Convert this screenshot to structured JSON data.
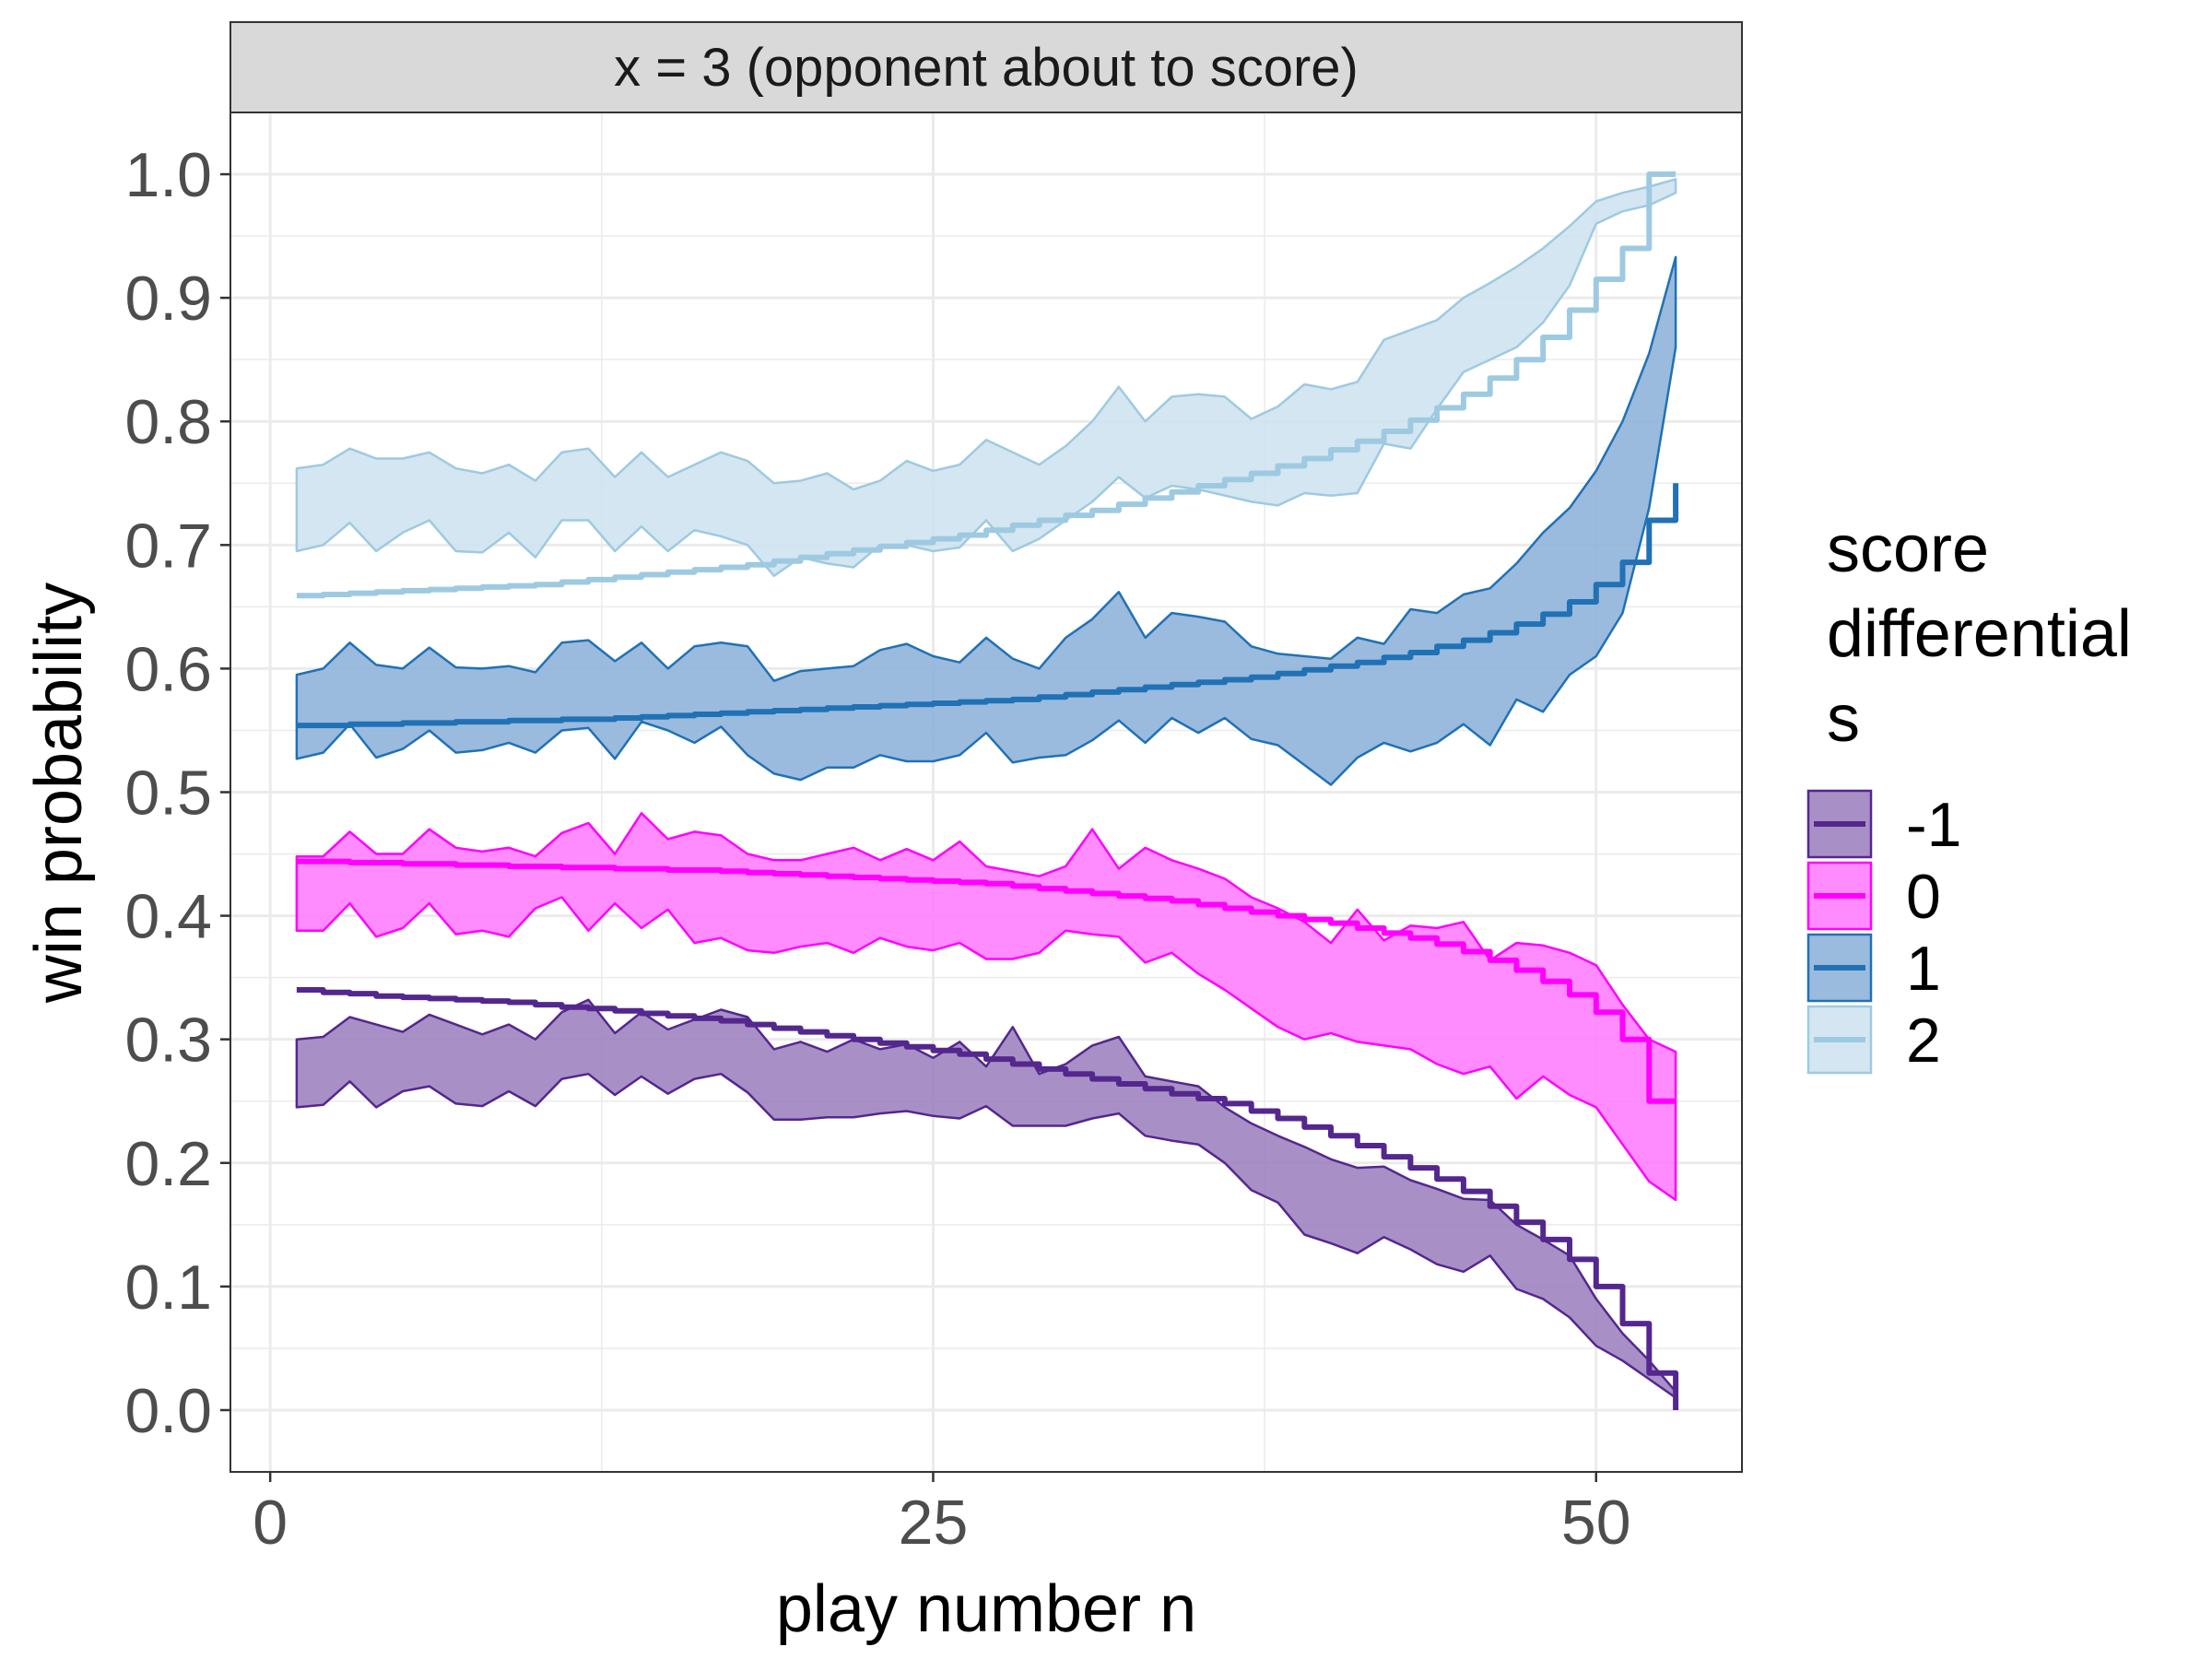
{
  "chart_data": {
    "type": "line",
    "facet_title": "x = 3 (opponent about to score)",
    "xlabel": "play number n",
    "ylabel": "win probability",
    "xlim": [
      -1.5,
      55.5
    ],
    "ylim": [
      -0.05,
      1.05
    ],
    "x_ticks": [
      0,
      25,
      50
    ],
    "x_tick_labels": [
      "0",
      "25",
      "50"
    ],
    "y_ticks": [
      0.0,
      0.1,
      0.2,
      0.3,
      0.4,
      0.5,
      0.6,
      0.7,
      0.8,
      0.9,
      1.0
    ],
    "y_tick_labels": [
      "0.0",
      "0.1",
      "0.2",
      "0.3",
      "0.4",
      "0.5",
      "0.6",
      "0.7",
      "0.8",
      "0.9",
      "1.0"
    ],
    "grid": true,
    "legend": {
      "title": "score differential s",
      "title_lines": [
        "score",
        "differential",
        "s"
      ],
      "position": "right"
    },
    "x": [
      1,
      2,
      3,
      4,
      5,
      6,
      7,
      8,
      9,
      10,
      11,
      12,
      13,
      14,
      15,
      16,
      17,
      18,
      19,
      20,
      21,
      22,
      23,
      24,
      25,
      26,
      27,
      28,
      29,
      30,
      31,
      32,
      33,
      34,
      35,
      36,
      37,
      38,
      39,
      40,
      41,
      42,
      43,
      44,
      45,
      46,
      47,
      48,
      49,
      50,
      51,
      52,
      53
    ],
    "series": [
      {
        "name": "-1",
        "color": "#54278f",
        "fill": "#9e84c0",
        "values": [
          0.34,
          0.338,
          0.337,
          0.335,
          0.334,
          0.333,
          0.332,
          0.331,
          0.33,
          0.328,
          0.326,
          0.325,
          0.323,
          0.321,
          0.319,
          0.317,
          0.315,
          0.312,
          0.309,
          0.306,
          0.303,
          0.3,
          0.297,
          0.294,
          0.291,
          0.288,
          0.284,
          0.28,
          0.276,
          0.272,
          0.268,
          0.264,
          0.26,
          0.256,
          0.252,
          0.248,
          0.242,
          0.236,
          0.229,
          0.222,
          0.214,
          0.205,
          0.196,
          0.187,
          0.177,
          0.165,
          0.152,
          0.138,
          0.122,
          0.1,
          0.07,
          0.03,
          0.0
        ],
        "lower": [
          0.245,
          0.247,
          0.266,
          0.245,
          0.258,
          0.262,
          0.248,
          0.246,
          0.258,
          0.246,
          0.268,
          0.272,
          0.255,
          0.27,
          0.256,
          0.268,
          0.272,
          0.257,
          0.235,
          0.235,
          0.237,
          0.237,
          0.24,
          0.242,
          0.238,
          0.236,
          0.246,
          0.23,
          0.23,
          0.23,
          0.236,
          0.24,
          0.222,
          0.218,
          0.215,
          0.2,
          0.178,
          0.168,
          0.142,
          0.135,
          0.127,
          0.14,
          0.13,
          0.118,
          0.112,
          0.125,
          0.098,
          0.09,
          0.075,
          0.052,
          0.04,
          0.025,
          0.01
        ],
        "upper": [
          0.3,
          0.302,
          0.318,
          0.312,
          0.306,
          0.32,
          0.312,
          0.304,
          0.312,
          0.3,
          0.322,
          0.332,
          0.305,
          0.322,
          0.308,
          0.316,
          0.324,
          0.318,
          0.292,
          0.298,
          0.29,
          0.3,
          0.292,
          0.296,
          0.285,
          0.298,
          0.278,
          0.31,
          0.272,
          0.28,
          0.295,
          0.302,
          0.27,
          0.266,
          0.262,
          0.245,
          0.232,
          0.222,
          0.213,
          0.203,
          0.196,
          0.197,
          0.186,
          0.179,
          0.171,
          0.17,
          0.15,
          0.138,
          0.125,
          0.09,
          0.062,
          0.04,
          0.015
        ]
      },
      {
        "name": "0",
        "color": "#ff00ff",
        "fill": "#ff80ff",
        "values": [
          0.444,
          0.444,
          0.443,
          0.443,
          0.442,
          0.442,
          0.441,
          0.441,
          0.44,
          0.44,
          0.439,
          0.439,
          0.438,
          0.438,
          0.437,
          0.437,
          0.436,
          0.435,
          0.434,
          0.433,
          0.432,
          0.431,
          0.43,
          0.429,
          0.428,
          0.427,
          0.426,
          0.424,
          0.422,
          0.42,
          0.418,
          0.416,
          0.414,
          0.412,
          0.409,
          0.406,
          0.403,
          0.4,
          0.397,
          0.394,
          0.39,
          0.386,
          0.382,
          0.377,
          0.371,
          0.364,
          0.356,
          0.347,
          0.336,
          0.322,
          0.3,
          0.25,
          0.25
        ],
        "lower": [
          0.388,
          0.388,
          0.41,
          0.383,
          0.39,
          0.41,
          0.385,
          0.388,
          0.383,
          0.406,
          0.415,
          0.388,
          0.41,
          0.39,
          0.405,
          0.378,
          0.382,
          0.372,
          0.37,
          0.375,
          0.378,
          0.37,
          0.382,
          0.375,
          0.372,
          0.378,
          0.365,
          0.365,
          0.37,
          0.388,
          0.385,
          0.383,
          0.362,
          0.37,
          0.353,
          0.34,
          0.325,
          0.31,
          0.3,
          0.305,
          0.298,
          0.295,
          0.292,
          0.28,
          0.272,
          0.278,
          0.252,
          0.27,
          0.255,
          0.245,
          0.215,
          0.185,
          0.17
        ],
        "upper": [
          0.448,
          0.448,
          0.468,
          0.45,
          0.45,
          0.47,
          0.455,
          0.452,
          0.455,
          0.448,
          0.467,
          0.475,
          0.45,
          0.483,
          0.462,
          0.468,
          0.465,
          0.45,
          0.445,
          0.445,
          0.45,
          0.455,
          0.445,
          0.454,
          0.445,
          0.46,
          0.44,
          0.436,
          0.432,
          0.44,
          0.47,
          0.438,
          0.455,
          0.445,
          0.438,
          0.43,
          0.415,
          0.406,
          0.395,
          0.378,
          0.405,
          0.38,
          0.392,
          0.39,
          0.395,
          0.364,
          0.378,
          0.376,
          0.37,
          0.36,
          0.328,
          0.3,
          0.29
        ]
      },
      {
        "name": "1",
        "color": "#2171b5",
        "fill": "#8fb4da",
        "values": [
          0.554,
          0.554,
          0.555,
          0.555,
          0.556,
          0.556,
          0.557,
          0.557,
          0.558,
          0.558,
          0.559,
          0.559,
          0.56,
          0.561,
          0.562,
          0.563,
          0.564,
          0.565,
          0.566,
          0.567,
          0.568,
          0.569,
          0.57,
          0.571,
          0.572,
          0.573,
          0.574,
          0.575,
          0.577,
          0.579,
          0.581,
          0.583,
          0.585,
          0.587,
          0.589,
          0.591,
          0.593,
          0.596,
          0.599,
          0.602,
          0.605,
          0.609,
          0.613,
          0.618,
          0.623,
          0.629,
          0.636,
          0.644,
          0.654,
          0.668,
          0.686,
          0.72,
          0.75
        ],
        "lower": [
          0.527,
          0.532,
          0.555,
          0.528,
          0.535,
          0.55,
          0.532,
          0.534,
          0.54,
          0.532,
          0.55,
          0.552,
          0.527,
          0.557,
          0.55,
          0.54,
          0.553,
          0.53,
          0.515,
          0.51,
          0.52,
          0.52,
          0.53,
          0.525,
          0.525,
          0.53,
          0.548,
          0.524,
          0.528,
          0.53,
          0.542,
          0.558,
          0.54,
          0.56,
          0.548,
          0.56,
          0.543,
          0.538,
          0.522,
          0.506,
          0.528,
          0.54,
          0.533,
          0.54,
          0.555,
          0.538,
          0.575,
          0.565,
          0.595,
          0.61,
          0.645,
          0.73,
          0.86
        ],
        "upper": [
          0.595,
          0.6,
          0.621,
          0.603,
          0.6,
          0.617,
          0.601,
          0.6,
          0.602,
          0.597,
          0.621,
          0.623,
          0.606,
          0.621,
          0.6,
          0.618,
          0.621,
          0.618,
          0.59,
          0.598,
          0.6,
          0.602,
          0.615,
          0.62,
          0.61,
          0.605,
          0.625,
          0.608,
          0.6,
          0.625,
          0.64,
          0.662,
          0.625,
          0.645,
          0.642,
          0.638,
          0.618,
          0.612,
          0.61,
          0.608,
          0.625,
          0.62,
          0.648,
          0.645,
          0.66,
          0.665,
          0.685,
          0.71,
          0.73,
          0.76,
          0.8,
          0.855,
          0.933
        ]
      },
      {
        "name": "2",
        "color": "#9ecae1",
        "fill": "#cfe3ef",
        "values": [
          0.659,
          0.66,
          0.661,
          0.662,
          0.663,
          0.664,
          0.665,
          0.666,
          0.667,
          0.668,
          0.67,
          0.672,
          0.674,
          0.676,
          0.678,
          0.68,
          0.682,
          0.684,
          0.687,
          0.69,
          0.693,
          0.696,
          0.699,
          0.702,
          0.705,
          0.708,
          0.712,
          0.716,
          0.72,
          0.724,
          0.728,
          0.733,
          0.738,
          0.743,
          0.748,
          0.753,
          0.758,
          0.764,
          0.77,
          0.777,
          0.784,
          0.792,
          0.801,
          0.811,
          0.822,
          0.835,
          0.85,
          0.868,
          0.89,
          0.915,
          0.94,
          1.0,
          1.0
        ],
        "lower": [
          0.695,
          0.7,
          0.718,
          0.695,
          0.71,
          0.72,
          0.695,
          0.694,
          0.71,
          0.69,
          0.72,
          0.72,
          0.695,
          0.715,
          0.695,
          0.712,
          0.707,
          0.7,
          0.675,
          0.69,
          0.685,
          0.682,
          0.7,
          0.7,
          0.695,
          0.698,
          0.72,
          0.695,
          0.705,
          0.72,
          0.735,
          0.755,
          0.738,
          0.748,
          0.745,
          0.74,
          0.735,
          0.732,
          0.742,
          0.74,
          0.742,
          0.782,
          0.778,
          0.81,
          0.84,
          0.85,
          0.86,
          0.88,
          0.91,
          0.96,
          0.97,
          0.975,
          0.985
        ],
        "upper": [
          0.762,
          0.765,
          0.778,
          0.77,
          0.77,
          0.775,
          0.762,
          0.758,
          0.765,
          0.752,
          0.775,
          0.778,
          0.755,
          0.775,
          0.755,
          0.765,
          0.775,
          0.768,
          0.75,
          0.752,
          0.758,
          0.745,
          0.752,
          0.768,
          0.76,
          0.765,
          0.785,
          0.775,
          0.765,
          0.78,
          0.8,
          0.828,
          0.8,
          0.82,
          0.822,
          0.82,
          0.802,
          0.812,
          0.83,
          0.826,
          0.832,
          0.866,
          0.874,
          0.882,
          0.9,
          0.912,
          0.925,
          0.94,
          0.958,
          0.978,
          0.985,
          0.99,
          0.996
        ]
      }
    ]
  }
}
